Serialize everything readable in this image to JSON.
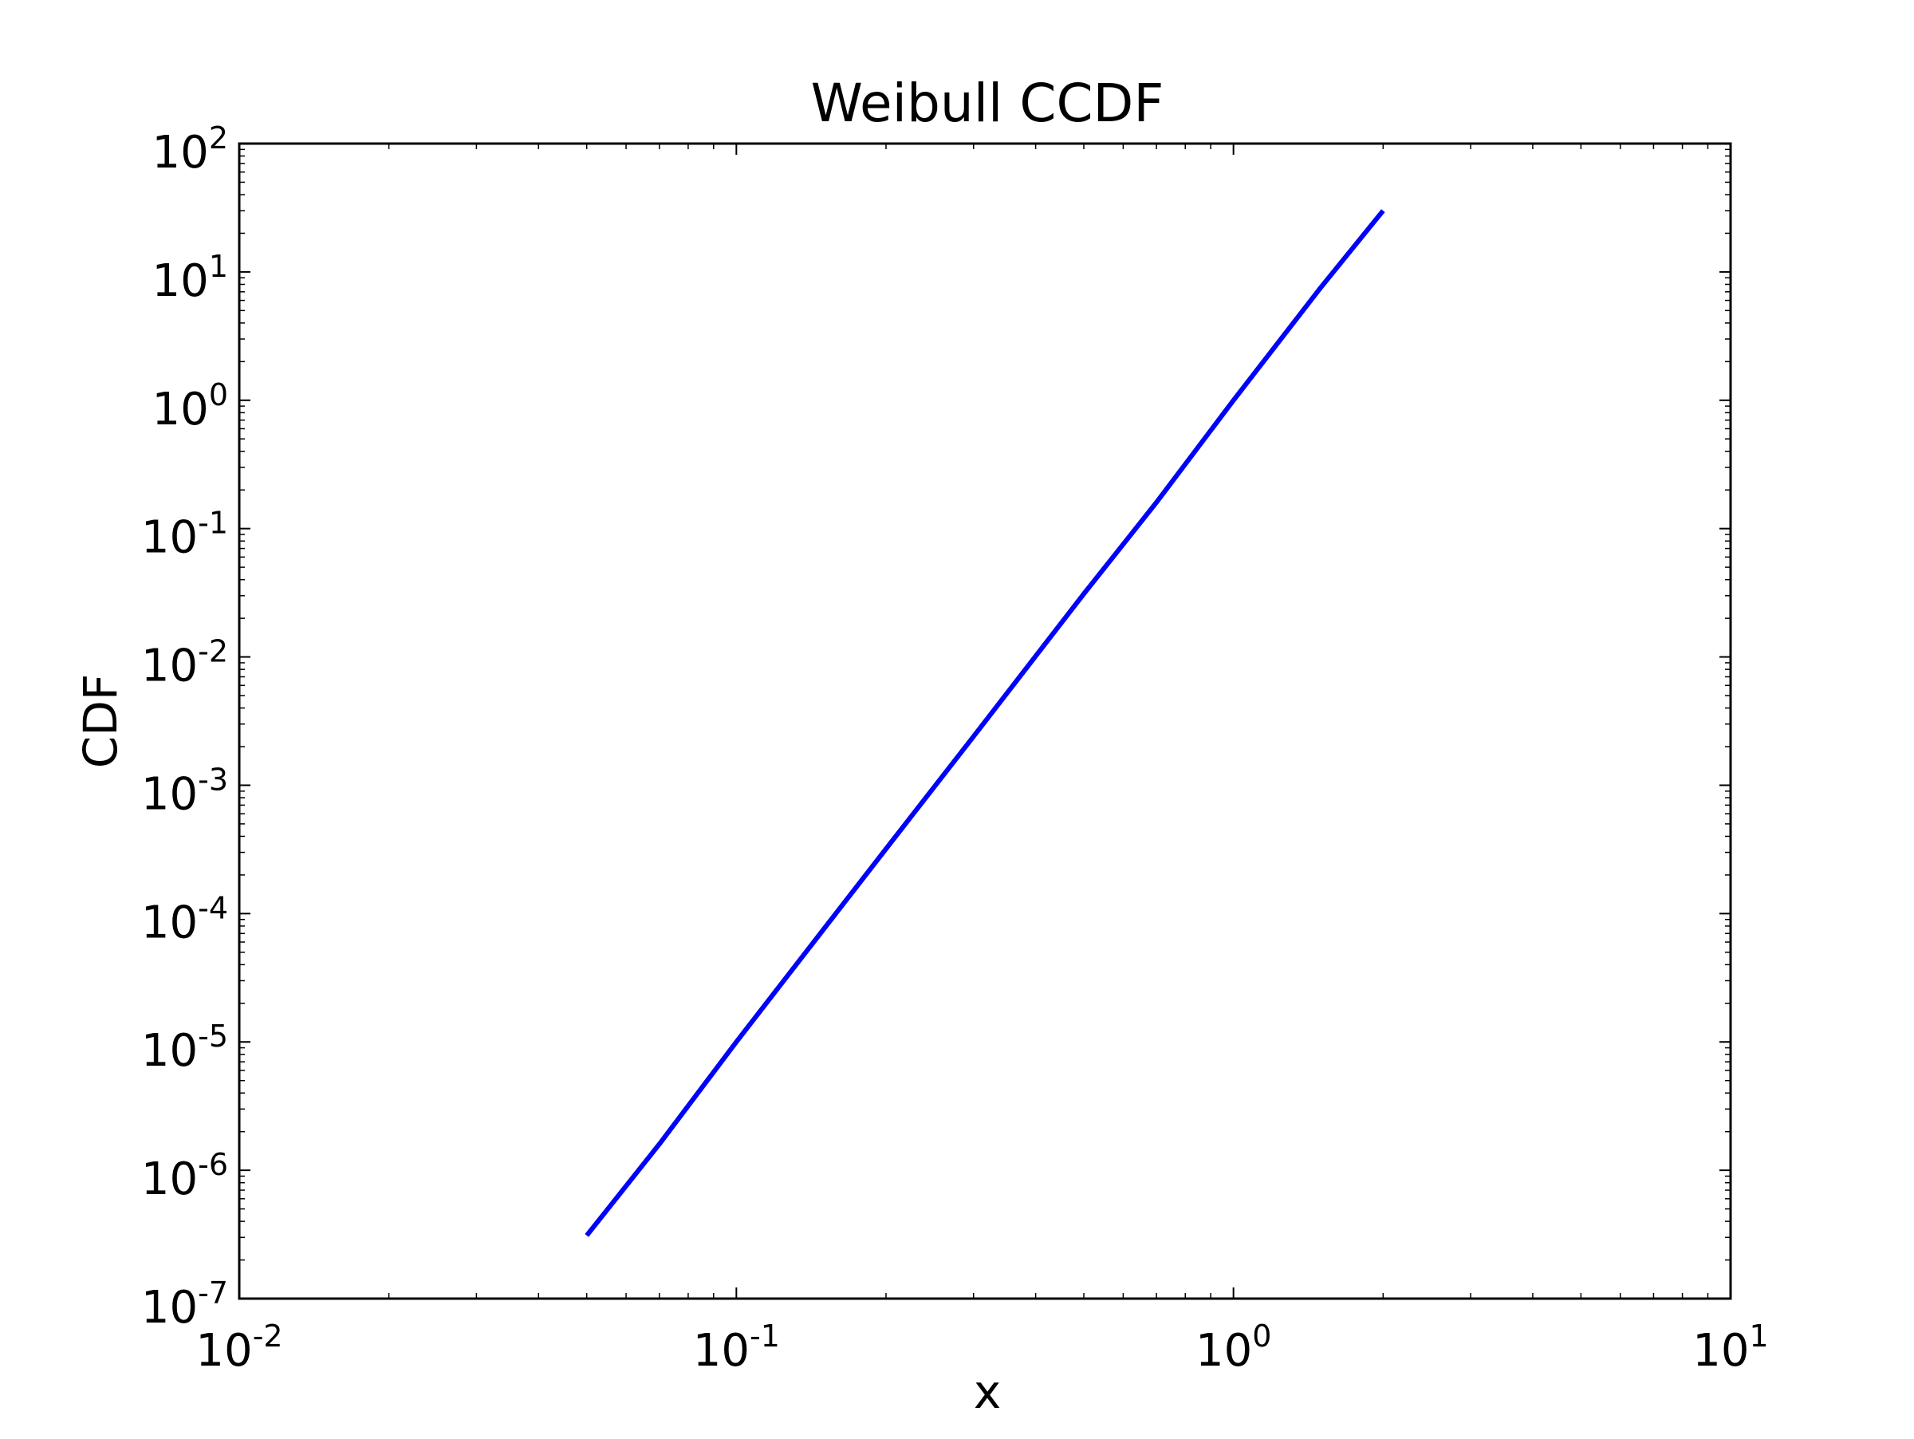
{
  "chart_data": {
    "type": "line",
    "title": "Weibull CCDF",
    "xlabel": "x",
    "ylabel": "CDF",
    "xscale": "log",
    "yscale": "log",
    "xlim": [
      0.01,
      10
    ],
    "ylim": [
      1e-07,
      100
    ],
    "grid": false,
    "x_ticks": [
      {
        "value": 0.01,
        "base": "10",
        "exp": "-2"
      },
      {
        "value": 0.1,
        "base": "10",
        "exp": "-1"
      },
      {
        "value": 1,
        "base": "10",
        "exp": "0"
      },
      {
        "value": 10,
        "base": "10",
        "exp": "1"
      }
    ],
    "y_ticks": [
      {
        "value": 1e-07,
        "base": "10",
        "exp": "-7"
      },
      {
        "value": 1e-06,
        "base": "10",
        "exp": "-6"
      },
      {
        "value": 1e-05,
        "base": "10",
        "exp": "-5"
      },
      {
        "value": 0.0001,
        "base": "10",
        "exp": "-4"
      },
      {
        "value": 0.001,
        "base": "10",
        "exp": "-3"
      },
      {
        "value": 0.01,
        "base": "10",
        "exp": "-2"
      },
      {
        "value": 0.1,
        "base": "10",
        "exp": "-1"
      },
      {
        "value": 1,
        "base": "10",
        "exp": "0"
      },
      {
        "value": 10,
        "base": "10",
        "exp": "1"
      },
      {
        "value": 100,
        "base": "10",
        "exp": "2"
      }
    ],
    "series": [
      {
        "color": "#0000ff",
        "x": [
          0.05,
          0.07,
          0.1,
          0.15,
          0.2,
          0.3,
          0.5,
          0.7,
          1.0,
          1.5,
          2.0
        ],
        "y": [
          3.1e-07,
          1.6e-06,
          1e-05,
          7.6e-05,
          0.00032,
          0.0024,
          0.031,
          0.16,
          1.0,
          7.6,
          30
        ]
      }
    ]
  }
}
